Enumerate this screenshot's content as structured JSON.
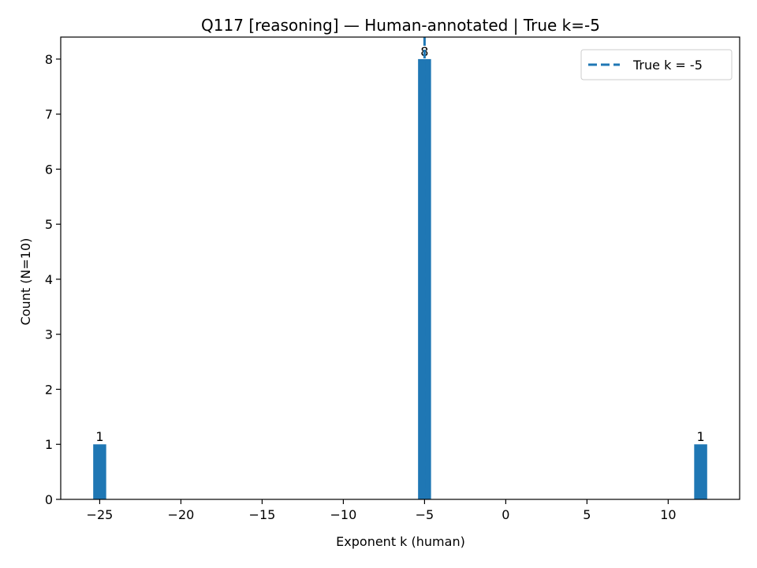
{
  "chart_data": {
    "type": "bar",
    "title": "Q117 [reasoning] — Human-annotated | True k=-5",
    "xlabel": "Exponent k (human)",
    "ylabel": "Count (N=10)",
    "xlim": [
      -27.4,
      14.4
    ],
    "ylim": [
      0,
      8.4
    ],
    "xticks": [
      -25,
      -20,
      -15,
      -10,
      -5,
      0,
      5,
      10
    ],
    "xtick_labels": [
      "−25",
      "−20",
      "−15",
      "−10",
      "−5",
      "0",
      "5",
      "10"
    ],
    "yticks": [
      0,
      1,
      2,
      3,
      4,
      5,
      6,
      7,
      8
    ],
    "ytick_labels": [
      "0",
      "1",
      "2",
      "3",
      "4",
      "5",
      "6",
      "7",
      "8"
    ],
    "bars": [
      {
        "k": -25,
        "count": 1,
        "label": "1"
      },
      {
        "k": -5,
        "count": 8,
        "label": "8"
      },
      {
        "k": 12,
        "count": 1,
        "label": "1"
      }
    ],
    "bar_width": 0.8,
    "reference_line": {
      "x": -5,
      "style": "dashed",
      "label": "True k = -5"
    },
    "legend": {
      "position": "top-right",
      "entries": [
        "True k = -5"
      ]
    },
    "grid": false,
    "colors": {
      "bar": "#1f77b4",
      "line": "#1f77b4"
    }
  }
}
